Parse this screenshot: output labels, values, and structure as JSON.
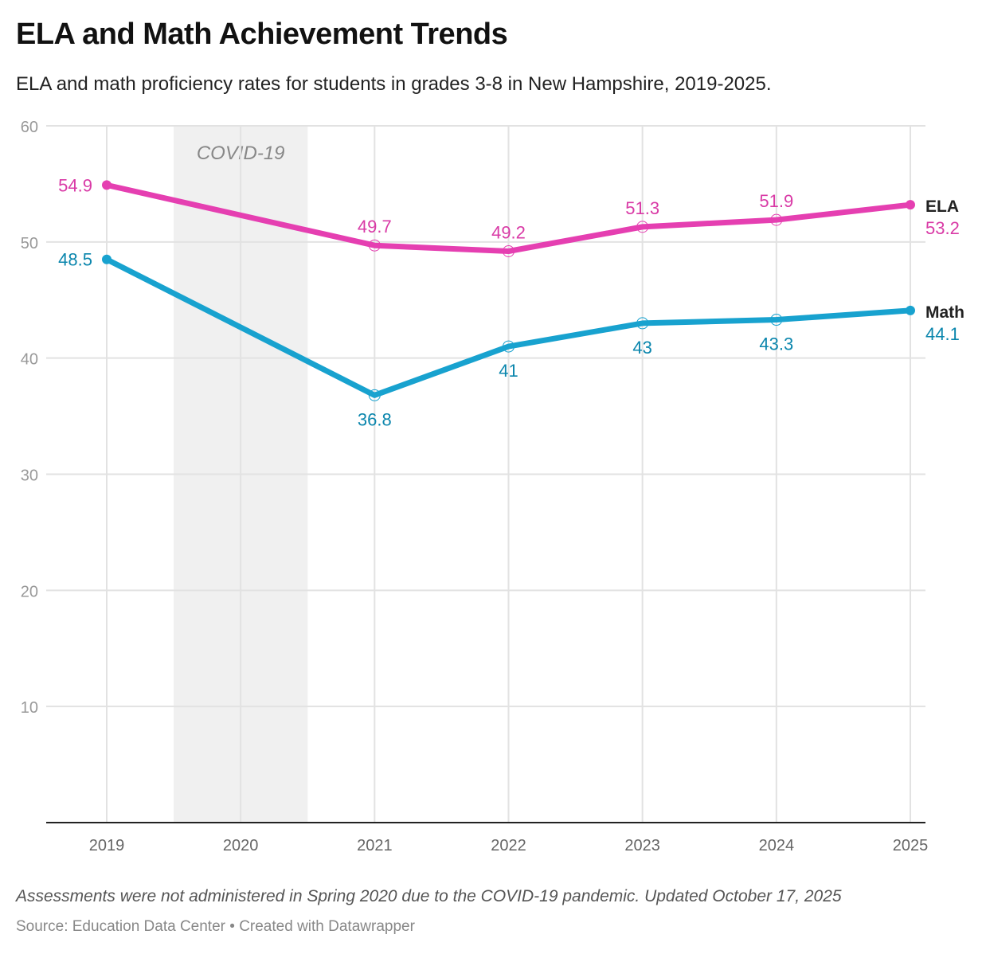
{
  "chart_data": {
    "type": "line",
    "title": "ELA and Math Achievement Trends",
    "subtitle": "ELA and math proficiency rates for students in grades 3-8 in New Hampshire, 2019-2025.",
    "note": "Assessments were not administered in Spring 2020 due to the COVID-19 pandemic. Updated October 17, 2025",
    "source": "Source: Education Data Center • Created with Datawrapper",
    "x_ticks": [
      "2019",
      "2020",
      "2021",
      "2022",
      "2023",
      "2024",
      "2025"
    ],
    "y_ticks": [
      10,
      20,
      30,
      40,
      50,
      60
    ],
    "ylim": [
      0,
      60
    ],
    "xlim": [
      2019,
      2025
    ],
    "grid": true,
    "annotation": {
      "label": "COVID-19",
      "range": [
        2019.5,
        2020.5
      ],
      "color": "#f0f0f0"
    },
    "series": [
      {
        "name": "ELA",
        "color": "#e53fb1",
        "label_color": "#d93aa6",
        "x": [
          2019,
          2021,
          2022,
          2023,
          2024,
          2025
        ],
        "values": [
          54.9,
          49.7,
          49.2,
          51.3,
          51.9,
          53.2
        ],
        "labels": [
          "54.9",
          "49.7",
          "49.2",
          "51.3",
          "51.9",
          "53.2"
        ],
        "label_pos": "above"
      },
      {
        "name": "Math",
        "color": "#18a2cf",
        "label_color": "#0b86ad",
        "x": [
          2019,
          2021,
          2022,
          2023,
          2024,
          2025
        ],
        "values": [
          48.5,
          36.8,
          41,
          43,
          43.3,
          44.1
        ],
        "labels": [
          "48.5",
          "36.8",
          "41",
          "43",
          "43.3",
          "44.1"
        ],
        "label_pos": "below"
      }
    ]
  }
}
